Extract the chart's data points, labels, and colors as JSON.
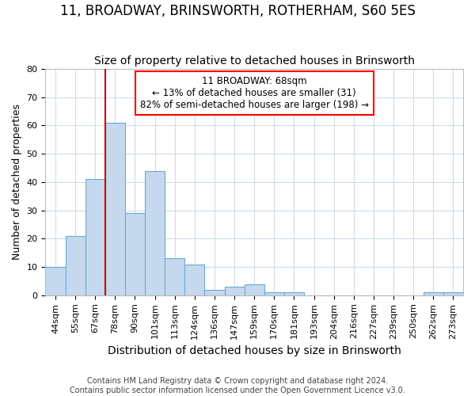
{
  "title": "11, BROADWAY, BRINSWORTH, ROTHERHAM, S60 5ES",
  "subtitle": "Size of property relative to detached houses in Brinsworth",
  "xlabel": "Distribution of detached houses by size in Brinsworth",
  "ylabel": "Number of detached properties",
  "categories": [
    "44sqm",
    "55sqm",
    "67sqm",
    "78sqm",
    "90sqm",
    "101sqm",
    "113sqm",
    "124sqm",
    "136sqm",
    "147sqm",
    "159sqm",
    "170sqm",
    "181sqm",
    "193sqm",
    "204sqm",
    "216sqm",
    "227sqm",
    "239sqm",
    "250sqm",
    "262sqm",
    "273sqm"
  ],
  "bar_values": [
    10,
    21,
    41,
    61,
    29,
    44,
    13,
    11,
    2,
    3,
    4,
    1,
    1,
    0,
    0,
    0,
    0,
    0,
    0,
    1,
    1
  ],
  "bar_color": "#c5d8ee",
  "bar_edge_color": "#6aaad4",
  "vline_color": "#cc0000",
  "vline_x_index": 2.5,
  "ylim": [
    0,
    80
  ],
  "yticks": [
    0,
    10,
    20,
    30,
    40,
    50,
    60,
    70,
    80
  ],
  "annotation_line1": "11 BROADWAY: 68sqm",
  "annotation_line2": "← 13% of detached houses are smaller (31)",
  "annotation_line3": "82% of semi-detached houses are larger (198) →",
  "footer1": "Contains HM Land Registry data © Crown copyright and database right 2024.",
  "footer2": "Contains public sector information licensed under the Open Government Licence v3.0.",
  "bg_color": "#ffffff",
  "grid_color": "#d0dce8",
  "title_fontsize": 12,
  "subtitle_fontsize": 10,
  "xlabel_fontsize": 10,
  "ylabel_fontsize": 9,
  "tick_fontsize": 8,
  "annot_fontsize": 8.5,
  "footer_fontsize": 7
}
